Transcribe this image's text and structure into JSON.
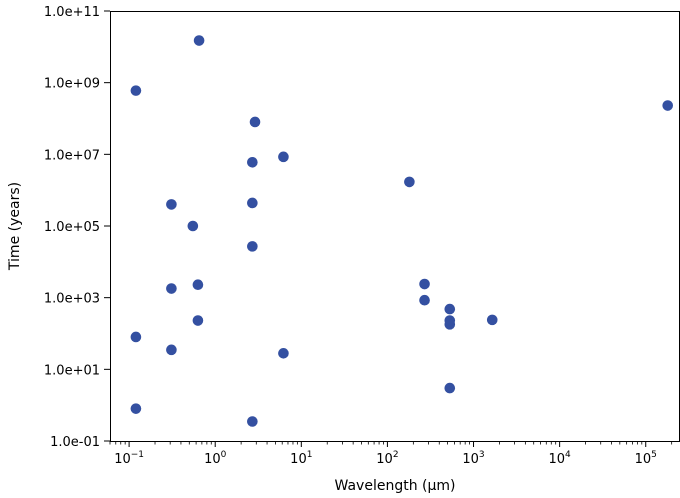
{
  "chart_data": {
    "type": "scatter",
    "title": "",
    "xlabel": "Wavelength (μm)",
    "ylabel": "Time (years)",
    "x_scale": "log",
    "y_scale": "log",
    "xlim": [
      0.06,
      250000
    ],
    "ylim": [
      0.1,
      100000000000
    ],
    "x_ticks": [
      {
        "value": 0.1,
        "mantissa": "10",
        "exp": "−1"
      },
      {
        "value": 1,
        "mantissa": "10",
        "exp": "0"
      },
      {
        "value": 10,
        "mantissa": "10",
        "exp": "1"
      },
      {
        "value": 100,
        "mantissa": "10",
        "exp": "2"
      },
      {
        "value": 1000,
        "mantissa": "10",
        "exp": "3"
      },
      {
        "value": 10000,
        "mantissa": "10",
        "exp": "4"
      },
      {
        "value": 100000,
        "mantissa": "10",
        "exp": "5"
      }
    ],
    "y_ticks": [
      {
        "value": 0.1,
        "label": "1.0e-01"
      },
      {
        "value": 10,
        "label": "1.0e+01"
      },
      {
        "value": 1000,
        "label": "1.0e+03"
      },
      {
        "value": 100000,
        "label": "1.0e+05"
      },
      {
        "value": 10000000,
        "label": "1.0e+07"
      },
      {
        "value": 1000000000,
        "label": "1.0e+09"
      },
      {
        "value": 100000000000,
        "label": "1.0e+11"
      }
    ],
    "grid": false,
    "marker_color": "#3450a1",
    "points": [
      {
        "x": 0.12,
        "y": 600000000
      },
      {
        "x": 0.12,
        "y": 80
      },
      {
        "x": 0.12,
        "y": 0.8
      },
      {
        "x": 0.31,
        "y": 400000
      },
      {
        "x": 0.31,
        "y": 1800
      },
      {
        "x": 0.31,
        "y": 35
      },
      {
        "x": 0.55,
        "y": 100000
      },
      {
        "x": 0.65,
        "y": 15000000000
      },
      {
        "x": 0.63,
        "y": 2300
      },
      {
        "x": 0.63,
        "y": 230
      },
      {
        "x": 2.7,
        "y": 6000000
      },
      {
        "x": 2.7,
        "y": 440000
      },
      {
        "x": 2.7,
        "y": 27000
      },
      {
        "x": 2.7,
        "y": 0.35
      },
      {
        "x": 2.9,
        "y": 80000000
      },
      {
        "x": 6.2,
        "y": 8500000
      },
      {
        "x": 6.2,
        "y": 28
      },
      {
        "x": 180,
        "y": 1700000
      },
      {
        "x": 270,
        "y": 2400
      },
      {
        "x": 270,
        "y": 850
      },
      {
        "x": 530,
        "y": 480
      },
      {
        "x": 530,
        "y": 230
      },
      {
        "x": 530,
        "y": 180
      },
      {
        "x": 530,
        "y": 3
      },
      {
        "x": 1650,
        "y": 240
      },
      {
        "x": 180000,
        "y": 230000000
      }
    ]
  }
}
